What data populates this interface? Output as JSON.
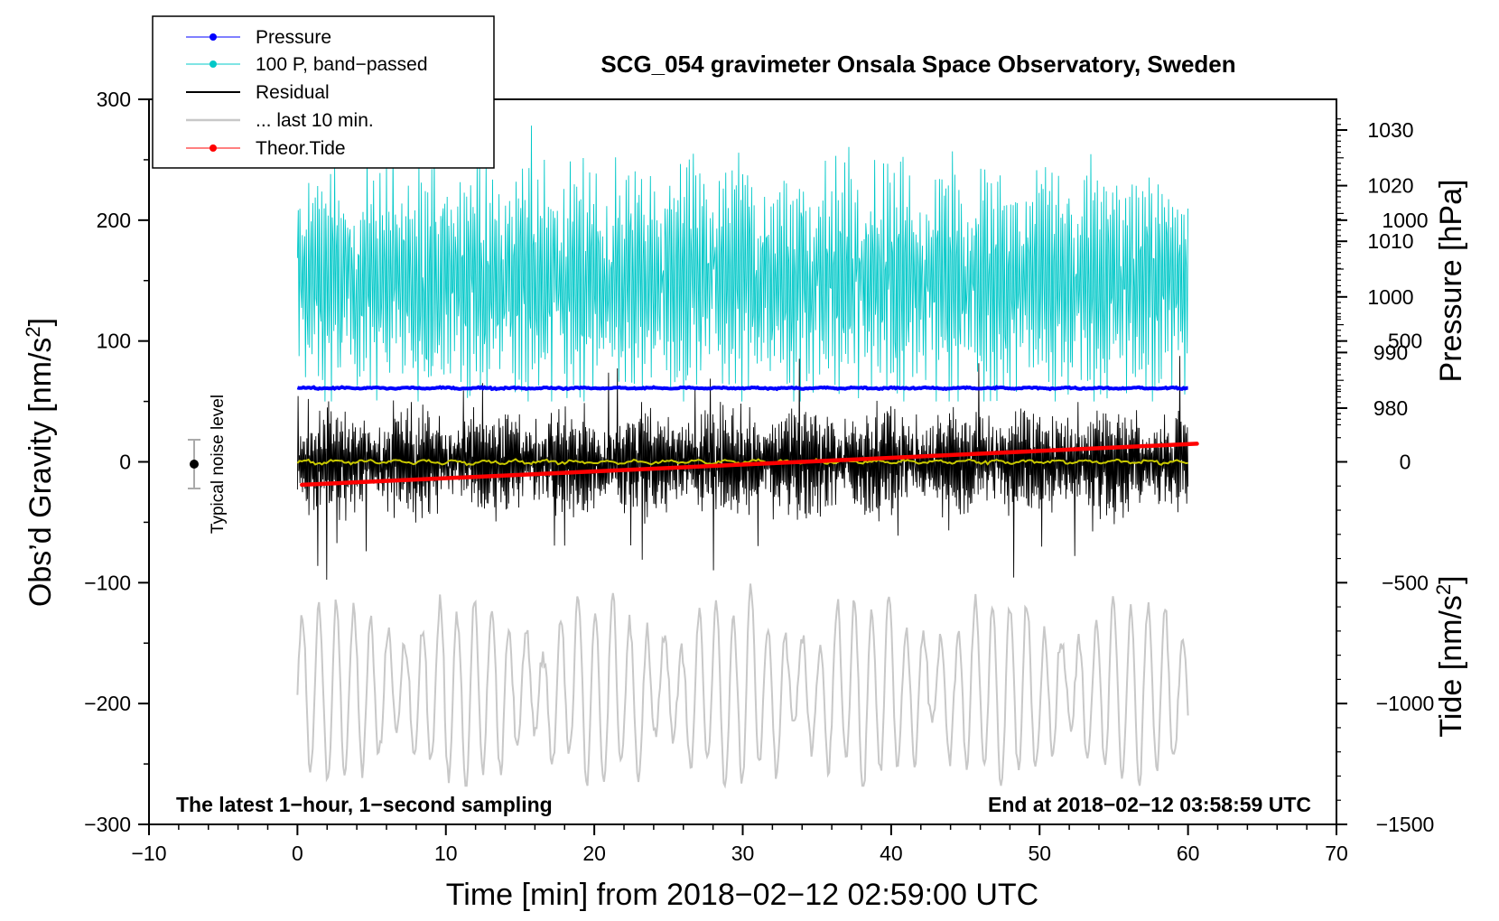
{
  "chart_data": {
    "type": "line",
    "title": "SCG_054 gravimeter Onsala Space Observatory, Sweden",
    "xlabel": "Time [min] from 2018−02−12 02:59:00 UTC",
    "ylabel_left": "Obs’d Gravity [nm/s²]",
    "ylabel_left_prefix": "Obs’d Gravity [nm/s",
    "ylabel_left_sup": "2",
    "ylabel_left_suffix": "]",
    "ylabel_right_pressure": "Pressure [hPa]",
    "ylabel_right_tide": "Tide [nm/s²]",
    "ylabel_right_tide_prefix": "Tide [nm/s",
    "ylabel_right_tide_sup": "2",
    "ylabel_right_tide_suffix": "]",
    "xlim": [
      -10,
      70
    ],
    "ylim_left": [
      -300,
      300
    ],
    "ylim_tide": [
      -1500,
      1500
    ],
    "xticks": [
      -10,
      0,
      10,
      20,
      30,
      40,
      50,
      60,
      70
    ],
    "xtick_labels": [
      "−10",
      "0",
      "10",
      "20",
      "30",
      "40",
      "50",
      "60",
      "70"
    ],
    "yticks_left": [
      300,
      200,
      100,
      0,
      -100,
      -200,
      -300
    ],
    "ytick_labels_left": [
      "300",
      "200",
      "100",
      "0",
      "−100",
      "−200",
      "−300"
    ],
    "pressure_ticks": [
      980,
      990,
      1000,
      1010,
      1020,
      1030
    ],
    "pressure_tick_labels": [
      "980",
      "990",
      "1000",
      "1010",
      "1020",
      "1030"
    ],
    "tide_ticks": [
      1000,
      500,
      0,
      -500,
      -1000,
      -1500
    ],
    "tide_tick_labels": [
      "1000",
      "500",
      "0",
      "−500",
      "−1000",
      "−1500"
    ],
    "series": [
      {
        "name": "Pressure",
        "color": "#0000ff",
        "axis": "pressure",
        "x_range": [
          0,
          60
        ],
        "approx_value_hPa": 983.6
      },
      {
        "name": "100 P, band−passed",
        "color": "#00c8c8",
        "axis": "left",
        "x_range": [
          0,
          60
        ],
        "approx_center": 150,
        "approx_range": [
          50,
          290
        ]
      },
      {
        "name": "Residual",
        "color": "#000000",
        "axis": "left",
        "x_range": [
          0,
          60
        ],
        "approx_center": 0,
        "approx_range": [
          -105,
          95
        ]
      },
      {
        "name": "... last 10 min.",
        "color": "#c8c8c8",
        "axis": "left",
        "x_range": [
          0,
          60
        ]
      },
      {
        "name": "Theor.Tide",
        "color": "#ff0000",
        "axis": "tide",
        "x": [
          0.3,
          60.6
        ],
        "values": [
          -95,
          75
        ]
      }
    ],
    "noise_marker": {
      "label": "Typical noise level",
      "x": -7,
      "y": 0,
      "half_range": 20
    },
    "annotations": {
      "bottom_left": "The latest 1−hour, 1−second sampling",
      "bottom_right": "End at 2018−02−12 03:58:59 UTC"
    },
    "legend_position": "top-left"
  },
  "colors": {
    "pressure": "#0000ff",
    "bandpassed": "#00c8c8",
    "residual": "#000000",
    "last10": "#c8c8c8",
    "tide": "#ff0000",
    "smooth": "#c8c800"
  }
}
